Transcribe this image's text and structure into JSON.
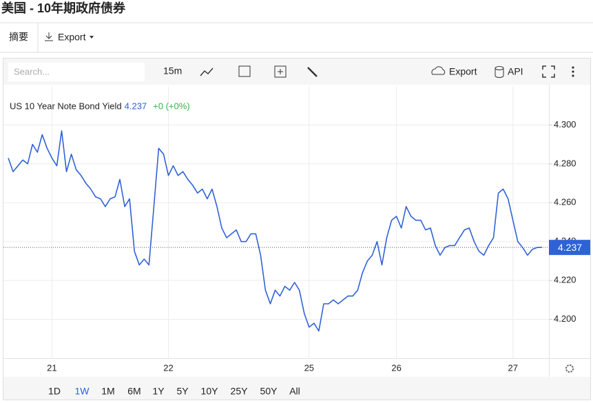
{
  "page": {
    "title": "美国 - 10年期政府债券",
    "tabs": [
      "摘要",
      "Export"
    ],
    "toolbar": {
      "search_placeholder": "Search...",
      "interval": "15m",
      "export": "Export",
      "api": "API"
    },
    "ranges": [
      "1D",
      "1W",
      "1M",
      "6M",
      "1Y",
      "5Y",
      "10Y",
      "25Y",
      "50Y",
      "All"
    ]
  },
  "chart_data": {
    "type": "line",
    "categories": [
      null,
      null,
      null,
      null,
      null,
      null,
      null,
      null,
      null,
      "21",
      null,
      null,
      null,
      null,
      null,
      null,
      null,
      null,
      null,
      null,
      null,
      null,
      null,
      null,
      null,
      null,
      null,
      null,
      null,
      null,
      null,
      null,
      null,
      "22",
      null,
      null,
      null,
      null,
      null,
      null,
      null,
      null,
      null,
      null,
      null,
      null,
      null,
      null,
      null,
      null,
      null,
      null,
      null,
      null,
      null,
      null,
      null,
      null,
      null,
      null,
      null,
      null,
      "25",
      null,
      null,
      null,
      null,
      null,
      null,
      null,
      null,
      null,
      null,
      null,
      null,
      null,
      null,
      null,
      null,
      null,
      "26",
      null,
      null,
      null,
      null,
      null,
      null,
      null,
      null,
      null,
      null,
      null,
      null,
      null,
      null,
      null,
      null,
      null,
      null,
      null,
      null,
      null,
      null,
      null,
      "27",
      null,
      null,
      null,
      null,
      null,
      null
    ],
    "series": [
      {
        "name": "US 10 Year Note Bond Yield",
        "color": "#2f62d6",
        "change": "+0 (+0%)",
        "values": [
          4.283,
          4.276,
          4.279,
          4.282,
          4.28,
          4.29,
          4.286,
          4.295,
          4.288,
          4.283,
          4.279,
          4.297,
          4.276,
          4.285,
          4.277,
          4.274,
          4.27,
          4.267,
          4.263,
          4.262,
          4.258,
          4.262,
          4.263,
          4.272,
          4.258,
          4.262,
          4.235,
          4.228,
          4.231,
          4.228,
          4.258,
          4.288,
          4.285,
          4.274,
          4.279,
          4.274,
          4.276,
          4.272,
          4.269,
          4.265,
          4.267,
          4.262,
          4.267,
          4.258,
          4.247,
          4.242,
          4.244,
          4.246,
          4.24,
          4.24,
          4.244,
          4.244,
          4.233,
          4.215,
          4.208,
          4.215,
          4.212,
          4.217,
          4.215,
          4.219,
          4.215,
          4.203,
          4.196,
          4.198,
          4.194,
          4.208,
          4.208,
          4.21,
          4.208,
          4.21,
          4.212,
          4.212,
          4.215,
          4.224,
          4.23,
          4.233,
          4.24,
          4.228,
          4.242,
          4.251,
          4.253,
          4.247,
          4.258,
          4.253,
          4.251,
          4.251,
          4.246,
          4.247,
          4.238,
          4.233,
          4.237,
          4.238,
          4.238,
          4.242,
          4.246,
          4.247,
          4.24,
          4.235,
          4.233,
          4.238,
          4.242,
          4.265,
          4.267,
          4.262,
          4.251,
          4.24,
          4.237,
          4.233,
          4.236,
          4.237,
          4.237
        ]
      }
    ],
    "ylim": [
      4.18,
      4.32
    ],
    "yticks": [
      {
        "value": 4.2,
        "label": "4.200"
      },
      {
        "value": 4.22,
        "label": "4.220"
      },
      {
        "value": 4.24,
        "label": "4.240"
      },
      {
        "value": 4.26,
        "label": "4.260"
      },
      {
        "value": 4.28,
        "label": "4.280"
      },
      {
        "value": 4.3,
        "label": "4.300"
      }
    ],
    "grid": true
  }
}
